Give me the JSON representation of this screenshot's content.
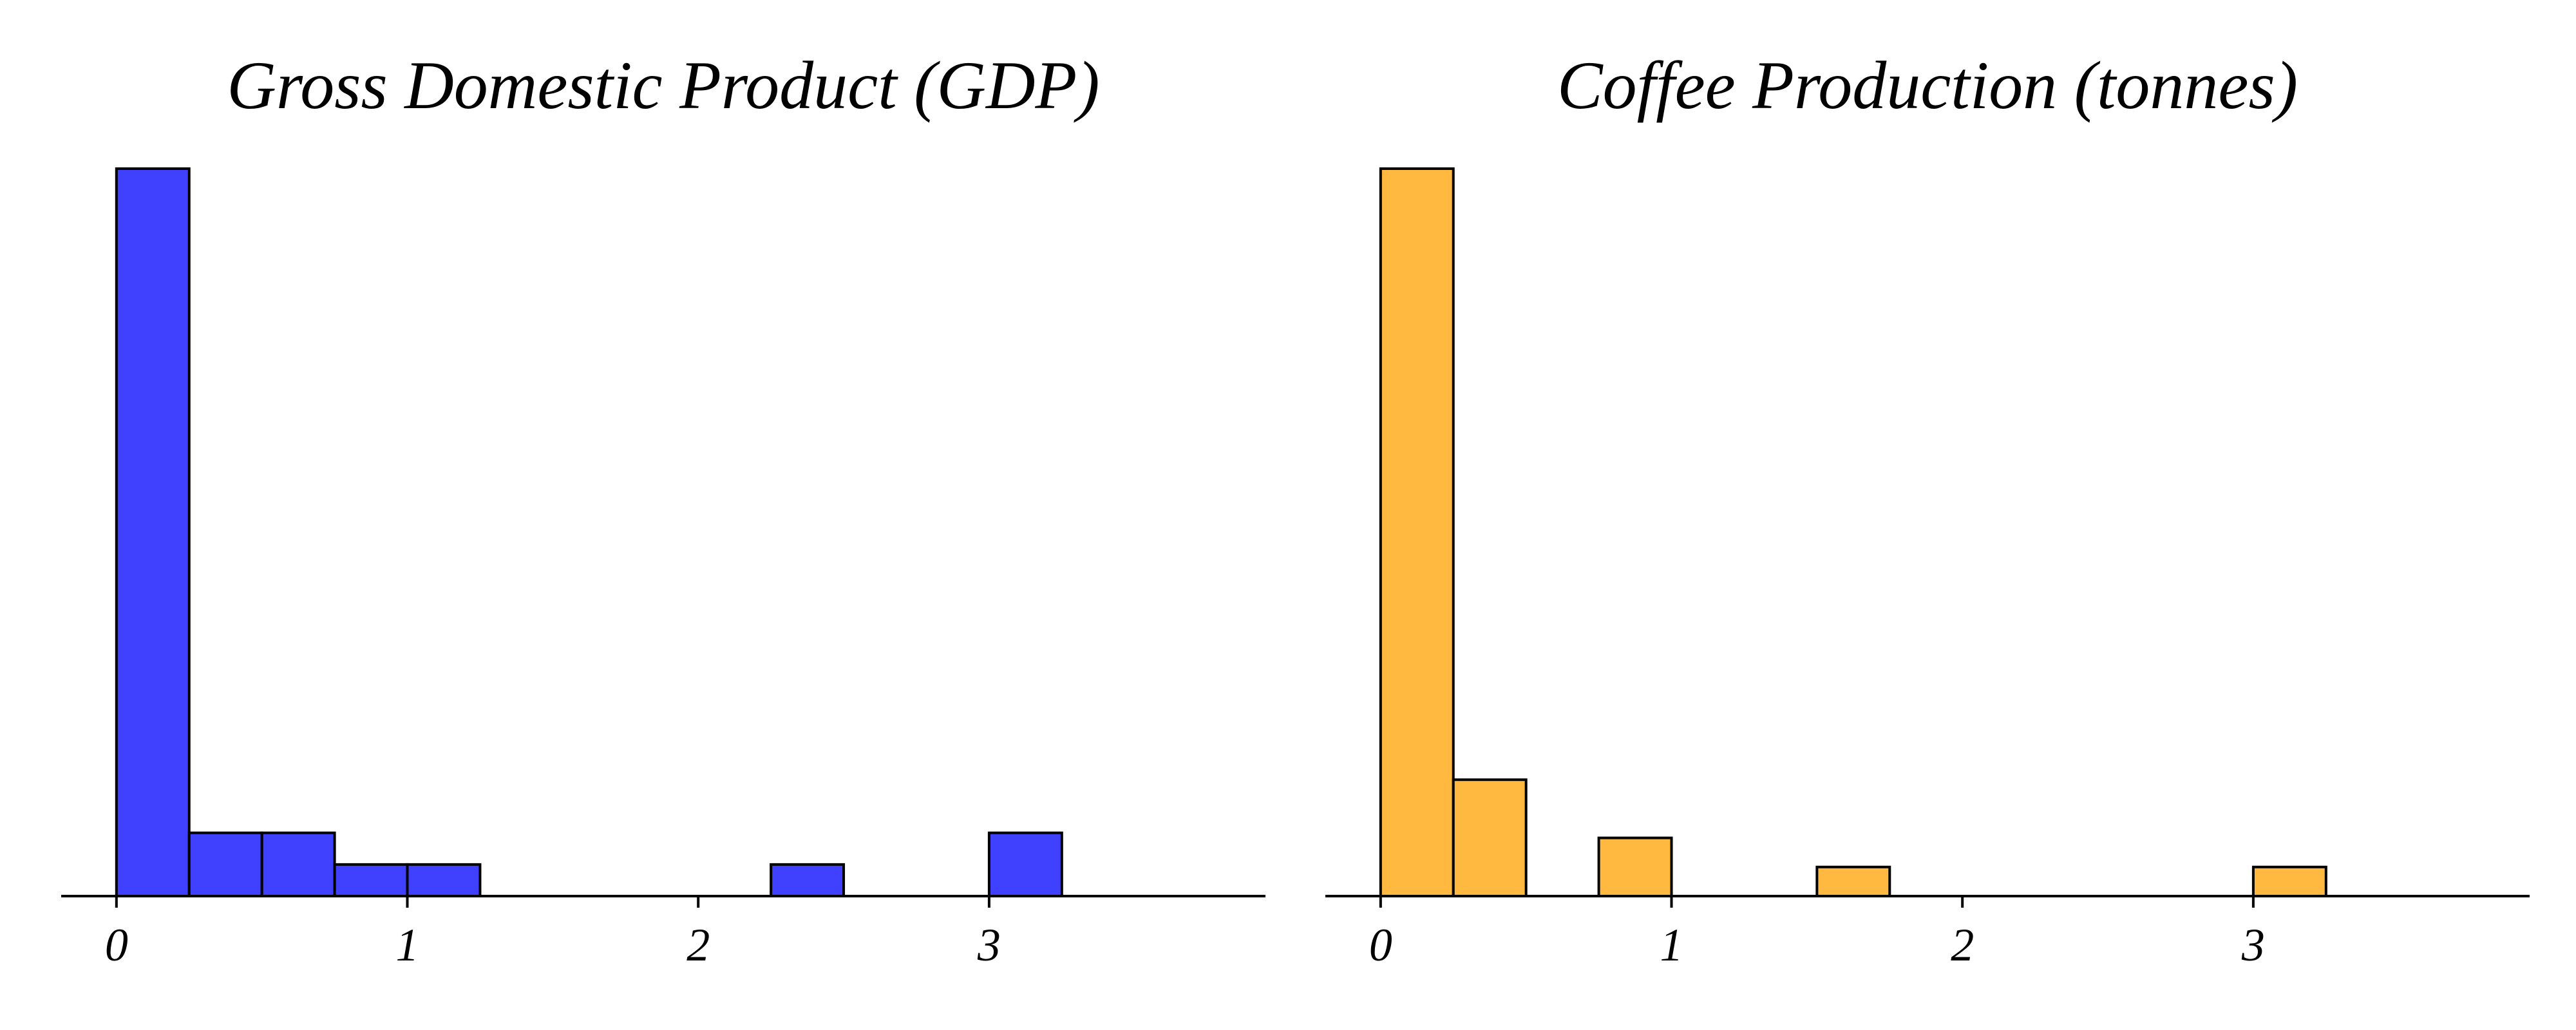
{
  "chart_data": [
    {
      "type": "bar",
      "title": "Gross Domestic Product (GDP)",
      "xlabel": "",
      "ylabel": "",
      "color": "#4040ff",
      "bin_width": 0.25,
      "xlim": [
        -0.19,
        3.95
      ],
      "ylim": [
        0,
        1.0
      ],
      "x_ticks": [
        0,
        1,
        2,
        3
      ],
      "x_tick_labels": [
        "0",
        "1",
        "2",
        "3"
      ],
      "bin_starts": [
        0,
        0.25,
        0.5,
        0.75,
        1.0,
        1.25,
        1.5,
        1.75,
        2.0,
        2.25,
        2.5,
        2.75,
        3.0,
        3.25,
        3.5
      ],
      "values": [
        23,
        2,
        2,
        1,
        1,
        0,
        0,
        0,
        0,
        1,
        0,
        0,
        2,
        0,
        0
      ]
    },
    {
      "type": "bar",
      "title": "Coffee Production (tonnes)",
      "xlabel": "",
      "ylabel": "",
      "color": "#ffb840",
      "bin_width": 0.25,
      "xlim": [
        -0.19,
        3.95
      ],
      "ylim": [
        0,
        1.0
      ],
      "x_ticks": [
        0,
        1,
        2,
        3
      ],
      "x_tick_labels": [
        "0",
        "1",
        "2",
        "3"
      ],
      "bin_starts": [
        0,
        0.25,
        0.5,
        0.75,
        1.0,
        1.25,
        1.5,
        1.75,
        2.0,
        2.25,
        2.5,
        2.75,
        3.0,
        3.25,
        3.5
      ],
      "values": [
        25,
        4,
        0,
        2,
        0,
        0,
        1,
        0,
        0,
        0,
        0,
        0,
        1,
        0,
        0
      ]
    }
  ]
}
